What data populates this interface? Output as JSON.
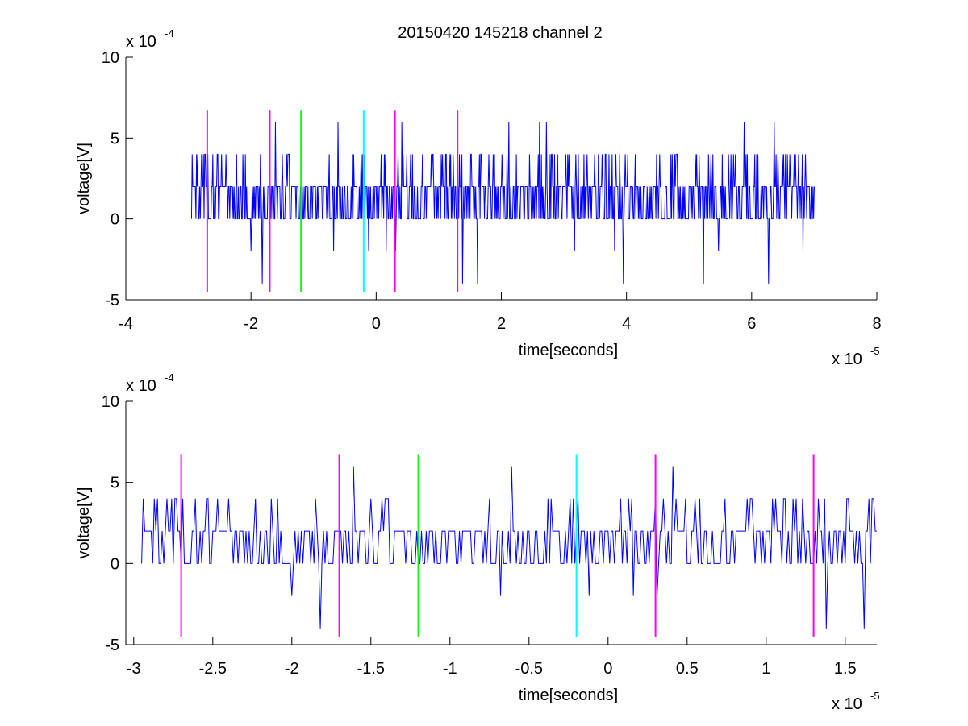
{
  "title": "20150420 145218 channel 2",
  "colors": {
    "signal": "#0000ff",
    "magenta": "#ff00ff",
    "green": "#00ff00",
    "cyan": "#00ffff",
    "axes": "#000000",
    "background": "#ffffff"
  },
  "chart_data": [
    {
      "type": "line",
      "title": "20150420 145218 channel 2",
      "xlabel": "time[seconds]",
      "ylabel": "voltage[V]",
      "x_exponent_label": "x 10",
      "x_exponent": "-5",
      "y_exponent_label": "x 10",
      "y_exponent": "-4",
      "xlim": [
        -4e-05,
        8e-05
      ],
      "ylim": [
        -0.0005,
        0.001
      ],
      "x_ticks": [
        -4e-05,
        -2e-05,
        0,
        2e-05,
        4e-05,
        6e-05,
        8e-05
      ],
      "x_tick_labels": [
        "-4",
        "-2",
        "0",
        "2",
        "4",
        "6",
        "8"
      ],
      "y_ticks": [
        -0.0005,
        0,
        0.0005,
        0.001
      ],
      "y_tick_labels": [
        "-5",
        "0",
        "5",
        "10"
      ],
      "grid": false,
      "series": [
        {
          "type": "noisy-signal",
          "color": "signal",
          "x_range": [
            -2.95e-05,
            7e-05
          ],
          "baseline": 0.0002,
          "quantum": 0.0002,
          "spike_max": 0.0006,
          "spike_min": -0.0004
        }
      ],
      "markers": [
        {
          "x": -2.7e-05,
          "y_range": [
            -0.00045,
            0.00067
          ],
          "color": "magenta"
        },
        {
          "x": -1.7e-05,
          "y_range": [
            -0.00045,
            0.00067
          ],
          "color": "magenta"
        },
        {
          "x": -1.2e-05,
          "y_range": [
            -0.00045,
            0.00067
          ],
          "color": "green"
        },
        {
          "x": -2e-06,
          "y_range": [
            -0.00045,
            0.00067
          ],
          "color": "cyan"
        },
        {
          "x": 3e-06,
          "y_range": [
            -0.00045,
            0.00067
          ],
          "color": "magenta"
        },
        {
          "x": 1.3e-05,
          "y_range": [
            -0.00045,
            0.00067
          ],
          "color": "magenta"
        }
      ]
    },
    {
      "type": "line",
      "title": "",
      "xlabel": "time[seconds]",
      "ylabel": "voltage[V]",
      "x_exponent_label": "x 10",
      "x_exponent": "-5",
      "y_exponent_label": "x 10",
      "y_exponent": "-4",
      "xlim": [
        -3.05e-05,
        1.7e-05
      ],
      "ylim": [
        -0.0005,
        0.001
      ],
      "x_ticks": [
        -3e-05,
        -2.5e-05,
        -2e-05,
        -1.5e-05,
        -1e-05,
        -5e-06,
        0,
        5e-06,
        1e-05,
        1.5e-05
      ],
      "x_tick_labels": [
        "-3",
        "-2.5",
        "-2",
        "-1.5",
        "-1",
        "-0.5",
        "0",
        "0.5",
        "1",
        "1.5"
      ],
      "y_ticks": [
        -0.0005,
        0,
        0.0005,
        0.001
      ],
      "y_tick_labels": [
        "-5",
        "0",
        "5",
        "10"
      ],
      "grid": false,
      "series": [
        {
          "type": "noisy-signal",
          "color": "signal",
          "x_range": [
            -2.95e-05,
            1.7e-05
          ],
          "baseline": 0.0002,
          "quantum": 0.0002,
          "spike_max": 0.0006,
          "spike_min": -0.0004
        }
      ],
      "markers": [
        {
          "x": -2.7e-05,
          "y_range": [
            -0.00045,
            0.00067
          ],
          "color": "magenta"
        },
        {
          "x": -1.7e-05,
          "y_range": [
            -0.00045,
            0.00067
          ],
          "color": "magenta"
        },
        {
          "x": -1.2e-05,
          "y_range": [
            -0.00045,
            0.00067
          ],
          "color": "green"
        },
        {
          "x": -2e-06,
          "y_range": [
            -0.00045,
            0.00067
          ],
          "color": "cyan"
        },
        {
          "x": 3e-06,
          "y_range": [
            -0.00045,
            0.00067
          ],
          "color": "magenta"
        },
        {
          "x": 1.3e-05,
          "y_range": [
            -0.00045,
            0.00067
          ],
          "color": "magenta"
        }
      ]
    }
  ]
}
